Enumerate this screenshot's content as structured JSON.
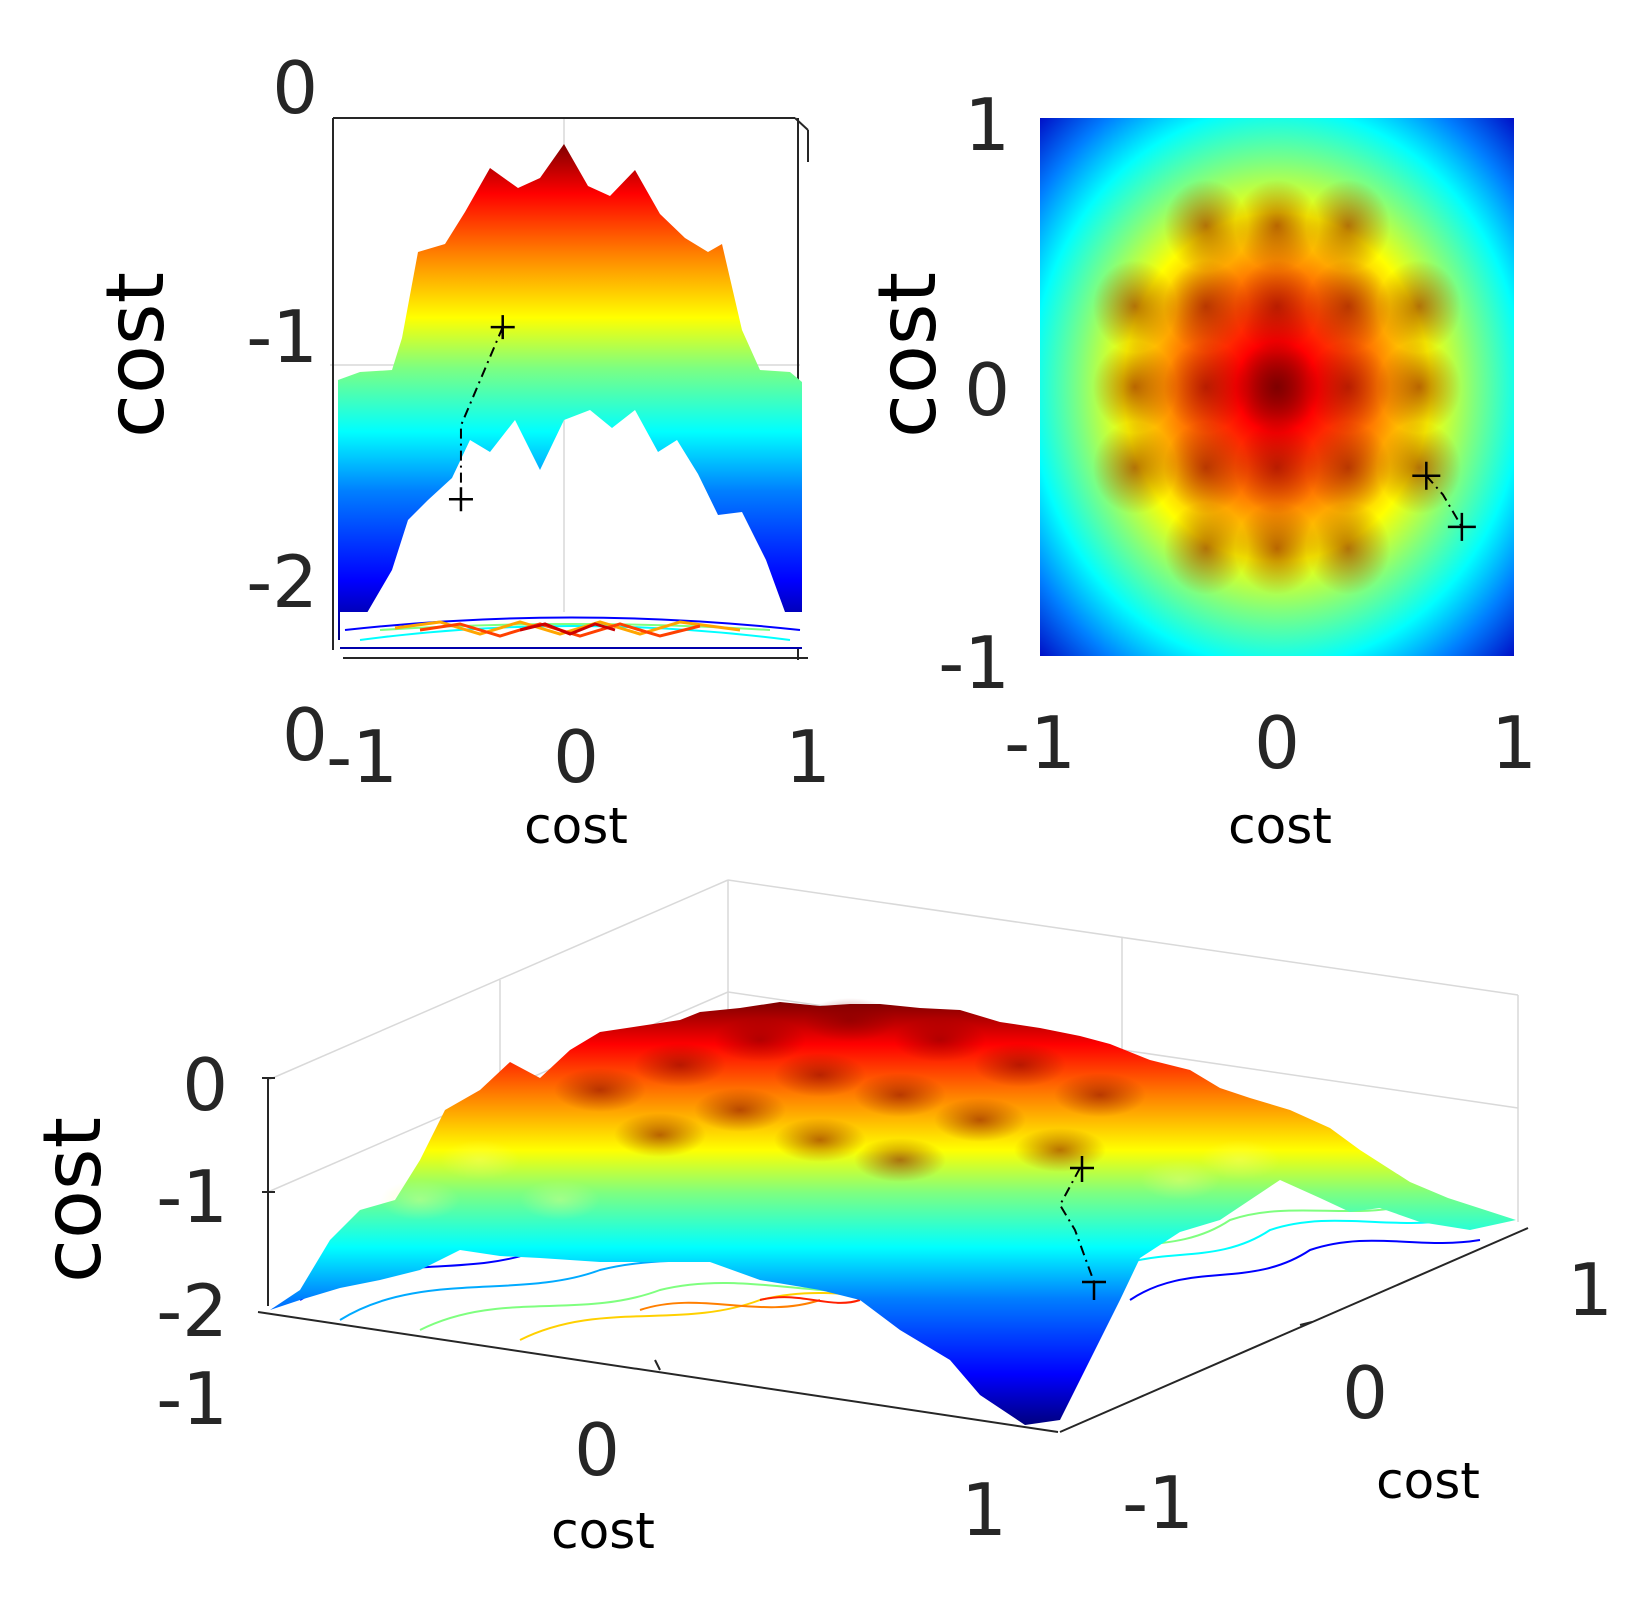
{
  "chart_data": [
    {
      "id": "side-view",
      "type": "surface",
      "view": "side (x-z)",
      "xlabel": "cost",
      "ylabel": "cost",
      "x_ticks": [
        "-1",
        "0",
        "1"
      ],
      "z_ticks": [
        "0",
        "-1",
        "-2"
      ],
      "extra_tick": "0",
      "xlim": [
        -1,
        1
      ],
      "zlim": [
        -2.3,
        0
      ],
      "path": [
        {
          "x": -0.29,
          "z": -0.85
        },
        {
          "x": -0.47,
          "z": -1.25
        },
        {
          "x": -0.47,
          "z": -1.55
        }
      ]
    },
    {
      "id": "top-view",
      "type": "heatmap",
      "view": "top (x-y)",
      "xlabel": "cost",
      "ylabel": "cost",
      "x_ticks": [
        "-1",
        "0",
        "1"
      ],
      "y_ticks": [
        "1",
        "0",
        "-1"
      ],
      "xlim": [
        -1,
        1
      ],
      "ylim": [
        -1,
        1
      ],
      "path": [
        {
          "x": 0.63,
          "y": -0.33
        },
        {
          "x": 0.7,
          "y": -0.4
        },
        {
          "x": 0.78,
          "y": -0.52
        }
      ]
    },
    {
      "id": "3d-view",
      "type": "surface",
      "view": "3D perspective",
      "xlabel": "cost",
      "ylabel": "cost",
      "zlabel": "cost",
      "x_ticks": [
        "-1",
        "0",
        "1"
      ],
      "y_ticks": [
        "-1",
        "0",
        "1"
      ],
      "z_ticks": [
        "0",
        "-1",
        "-2"
      ],
      "xlim": [
        -1,
        1
      ],
      "ylim": [
        -1,
        1
      ],
      "zlim": [
        -2,
        0
      ]
    }
  ],
  "colormap": [
    "#00007f",
    "#0000ff",
    "#007fff",
    "#00ffff",
    "#7fff7f",
    "#ffff00",
    "#ff7f00",
    "#ff0000",
    "#7f0000"
  ]
}
